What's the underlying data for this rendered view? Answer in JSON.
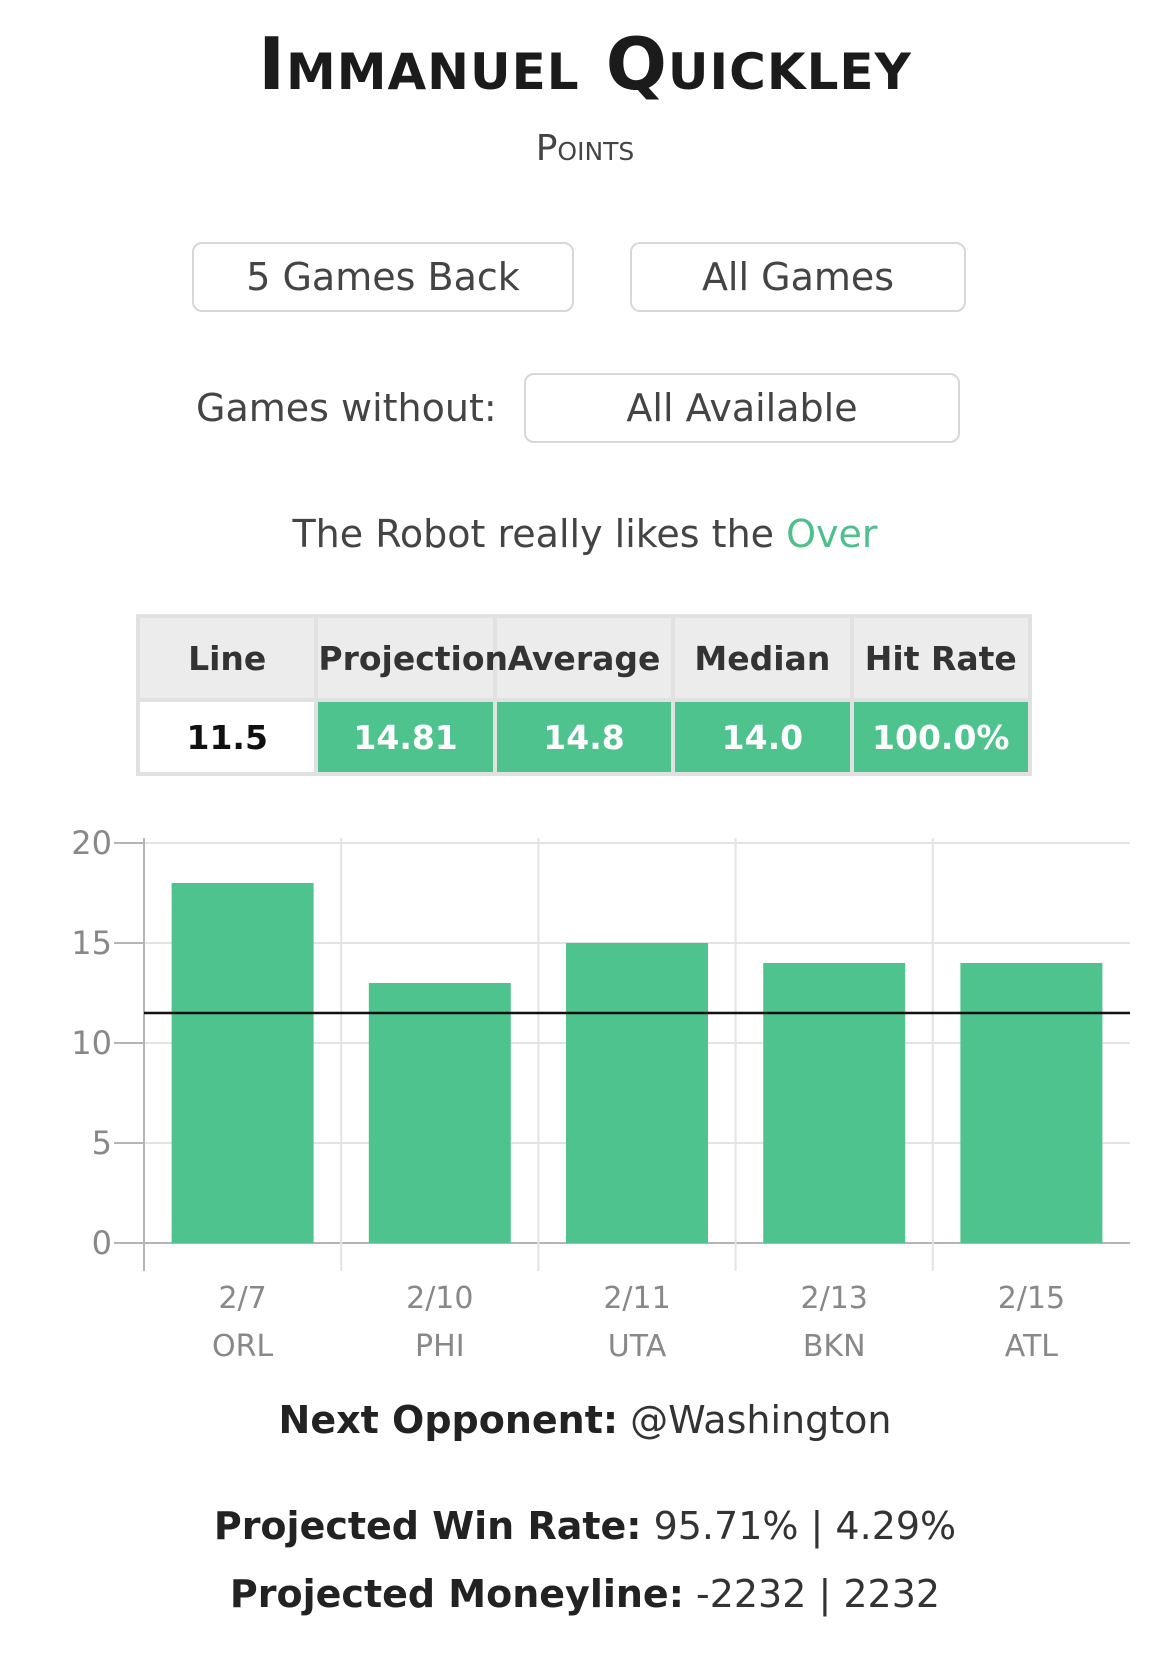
{
  "player": {
    "name": "Immanuel Quickley",
    "stat": "Points"
  },
  "filters": {
    "games_back": "5 Games Back",
    "all_games": "All Games",
    "games_without_label": "Games without:",
    "games_without_value": "All Available"
  },
  "robot": {
    "prefix": "The Robot really likes the ",
    "pick": "Over"
  },
  "stats_table": {
    "headers": [
      "Line",
      "Projection",
      "Average",
      "Median",
      "Hit Rate"
    ],
    "values": [
      "11.5",
      "14.81",
      "14.8",
      "14.0",
      "100.0%"
    ]
  },
  "colors": {
    "bar": "#4fc38e",
    "accent": "#4fc08d",
    "line": "#111111"
  },
  "chart_data": {
    "type": "bar",
    "categories": [
      "2/7",
      "2/10",
      "2/11",
      "2/13",
      "2/15"
    ],
    "subcategories": [
      "ORL",
      "PHI",
      "UTA",
      "BKN",
      "ATL"
    ],
    "values": [
      18,
      13,
      15,
      14,
      14
    ],
    "reference_line": 11.5,
    "ylim": [
      0,
      20
    ],
    "yticks": [
      0,
      5,
      10,
      15,
      20
    ],
    "grid": true
  },
  "next_opponent": {
    "label": "Next Opponent:",
    "value": " @Washington"
  },
  "projected": {
    "win_rate_label": "Projected Win Rate:",
    "win_rate_value": " 95.71% | 4.29%",
    "moneyline_label": "Projected Moneyline:",
    "moneyline_value": " -2232 | 2232"
  }
}
